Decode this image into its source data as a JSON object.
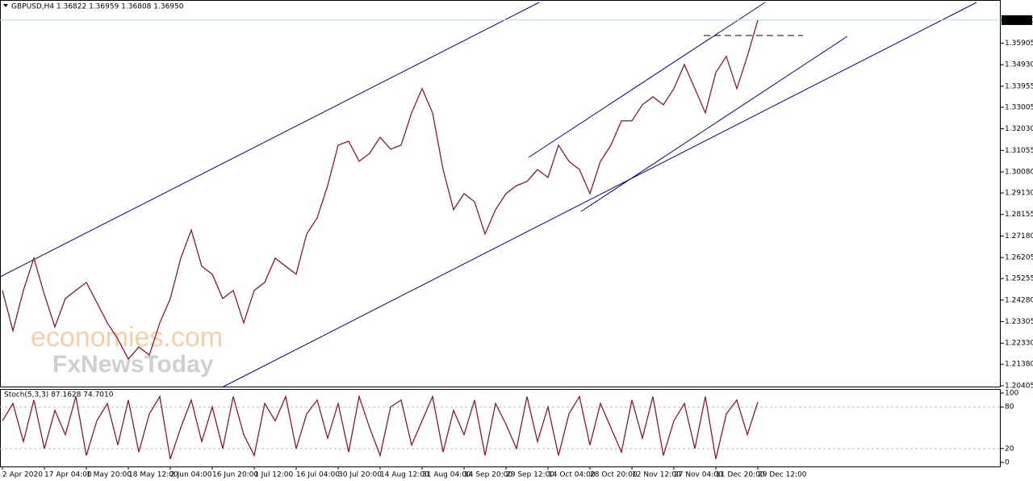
{
  "chart_data": [
    {
      "type": "line",
      "title": "GBPUSD,H4  1.36822 1.36959 1.36808 1.36950",
      "watermark": [
        "economies.com",
        "FxNewsToday"
      ],
      "categories": [
        "2 Apr 2020",
        null,
        null,
        null,
        "17 Apr 04:00",
        null,
        null,
        null,
        "1 May 20:00",
        null,
        null,
        null,
        "18 May 12:00",
        null,
        null,
        null,
        "2 Jun 04:00",
        null,
        null,
        null,
        "16 Jun 20:00",
        null,
        null,
        null,
        "1 Jul 12:00",
        null,
        null,
        null,
        "16 Jul 04:00",
        null,
        null,
        null,
        "30 Jul 20:00",
        null,
        null,
        null,
        "14 Aug 12:00",
        null,
        null,
        null,
        "31 Aug 04:00",
        null,
        null,
        null,
        "14 Sep 20:00",
        null,
        null,
        null,
        "29 Sep 12:00",
        null,
        null,
        null,
        "14 Oct 04:00",
        null,
        null,
        null,
        "28 Oct 20:00",
        null,
        null,
        null,
        "12 Nov 12:00",
        null,
        null,
        null,
        "27 Nov 04:00",
        null,
        null,
        null,
        "11 Dec 20:00",
        null,
        null,
        null,
        "29 Dec 12:00"
      ],
      "series": [
        {
          "name": "GBPUSD",
          "color": "#8b1a2b",
          "values": [
            1.2472,
            1.2289,
            1.2472,
            1.2618,
            1.2453,
            1.2307,
            1.2435,
            1.2472,
            1.2508,
            1.2417,
            1.2325,
            1.2252,
            1.2161,
            1.2216,
            1.2179,
            1.2325,
            1.2435,
            1.2618,
            1.2745,
            1.2581,
            1.2545,
            1.2435,
            1.2472,
            1.2325,
            1.2472,
            1.2508,
            1.2618,
            1.2581,
            1.2545,
            1.2727,
            1.28,
            1.2946,
            1.3129,
            1.3147,
            1.3056,
            1.3092,
            1.3165,
            1.3111,
            1.3129,
            1.3275,
            1.3385,
            1.3275,
            1.3019,
            1.2837,
            1.291,
            1.2873,
            1.2727,
            1.2837,
            1.291,
            1.2946,
            1.2965,
            1.3019,
            1.2983,
            1.3129,
            1.3056,
            1.3019,
            1.291,
            1.3056,
            1.3129,
            1.3239,
            1.3239,
            1.3312,
            1.3348,
            1.3312,
            1.3385,
            1.3494,
            1.3385,
            1.3275,
            1.3458,
            1.3531,
            1.3385,
            1.3531,
            1.3695
          ]
        }
      ],
      "ylim": [
        1.2033,
        1.3786
      ],
      "yticks": [
        {
          "value": 1.3695,
          "label": "1.36950"
        },
        1.35905,
        {
          "value": 1.3493,
          "label": "1.34930"
        },
        1.33955,
        1.33005,
        {
          "value": 1.3203,
          "label": "1.32030"
        },
        1.31055,
        {
          "value": 1.3008,
          "label": "1.30080"
        },
        {
          "value": 1.2913,
          "label": "1.29130"
        },
        1.28155,
        {
          "value": 1.2718,
          "label": "1.27180"
        },
        1.26205,
        1.25255,
        {
          "value": 1.2428,
          "label": "1.24280"
        },
        1.23305,
        {
          "value": 1.2233,
          "label": "1.22330"
        },
        {
          "value": 1.2138,
          "label": "1.21380"
        },
        1.20405
      ]
    },
    {
      "type": "line",
      "title": "Stoch(5,3,3) 87.1628 74.7010",
      "series": [
        {
          "name": "Stoch",
          "color": "#8b1a2b",
          "values": [
            60,
            85,
            30,
            90,
            20,
            75,
            40,
            95,
            10,
            60,
            85,
            25,
            90,
            15,
            70,
            95,
            5,
            50,
            90,
            30,
            80,
            20,
            95,
            40,
            10,
            85,
            60,
            95,
            20,
            70,
            90,
            35,
            85,
            15,
            95,
            50,
            10,
            80,
            90,
            25,
            60,
            95,
            15,
            75,
            40,
            90,
            10,
            85,
            55,
            20,
            95,
            30,
            80,
            10,
            70,
            95,
            25,
            85,
            50,
            15,
            90,
            35,
            95,
            10,
            60,
            85,
            20,
            95,
            5,
            70,
            90,
            40,
            87
          ]
        }
      ],
      "ylim": [
        -5.8,
        104.7
      ],
      "yticks": [
        100,
        80,
        20,
        0
      ]
    }
  ]
}
